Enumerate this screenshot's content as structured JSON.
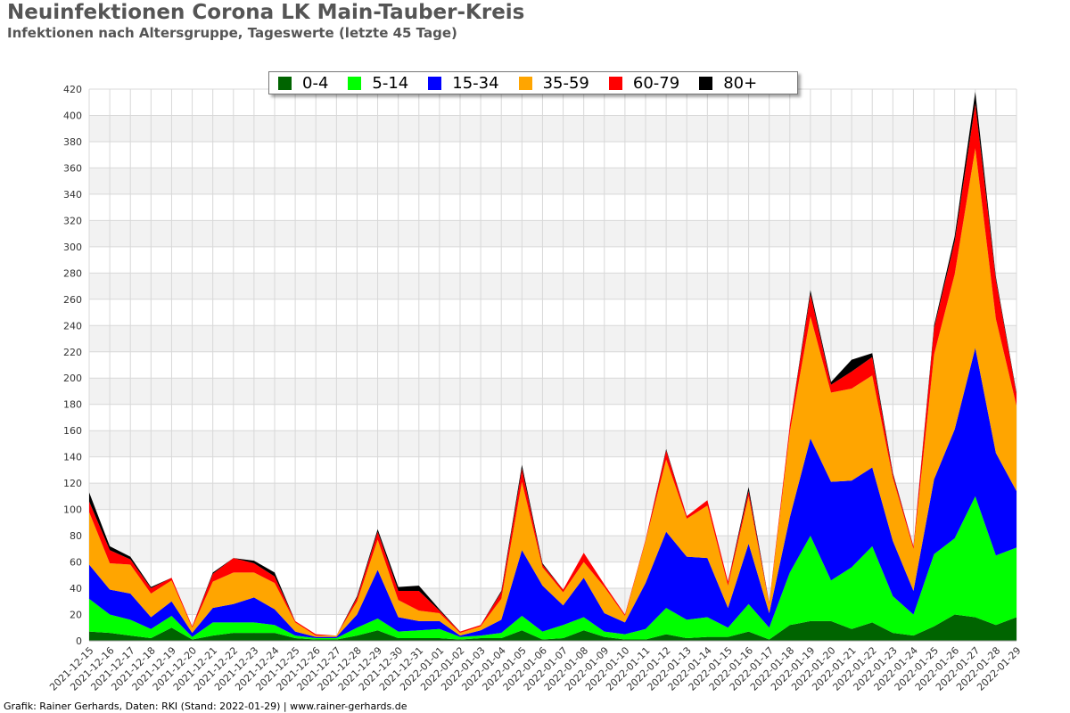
{
  "title": "Neuinfektionen Corona LK Main-Tauber-Kreis",
  "subtitle": "Infektionen nach Altersgruppe, Tageswerte (letzte 45 Tage)",
  "footer": "Grafik: Rainer Gerhards, Daten: RKI (Stand: 2022-01-29) | www.rainer-gerhards.de",
  "chart_data": {
    "type": "area",
    "stacked": true,
    "ylim": [
      0,
      420
    ],
    "yticks": [
      0,
      20,
      40,
      60,
      80,
      100,
      120,
      140,
      160,
      180,
      200,
      220,
      240,
      260,
      280,
      300,
      320,
      340,
      360,
      380,
      400,
      420
    ],
    "grid": true,
    "legend_position": "top-center",
    "x": [
      "2021-12-15",
      "2021-12-16",
      "2021-12-17",
      "2021-12-18",
      "2021-12-19",
      "2021-12-20",
      "2021-12-21",
      "2021-12-22",
      "2021-12-23",
      "2021-12-24",
      "2021-12-25",
      "2021-12-26",
      "2021-12-27",
      "2021-12-28",
      "2021-12-29",
      "2021-12-30",
      "2021-12-31",
      "2022-01-01",
      "2022-01-02",
      "2022-01-03",
      "2022-01-04",
      "2022-01-05",
      "2022-01-06",
      "2022-01-07",
      "2022-01-08",
      "2022-01-09",
      "2022-01-10",
      "2022-01-11",
      "2022-01-12",
      "2022-01-13",
      "2022-01-14",
      "2022-01-15",
      "2022-01-16",
      "2022-01-17",
      "2022-01-18",
      "2022-01-19",
      "2022-01-20",
      "2022-01-21",
      "2022-01-22",
      "2022-01-23",
      "2022-01-24",
      "2022-01-25",
      "2022-01-26",
      "2022-01-27",
      "2022-01-28",
      "2022-01-29"
    ],
    "series": [
      {
        "name": "0-4",
        "color": "#006400",
        "values": [
          7,
          6,
          4,
          2,
          10,
          1,
          4,
          6,
          6,
          6,
          2,
          1,
          1,
          4,
          8,
          2,
          2,
          2,
          1,
          2,
          2,
          8,
          1,
          2,
          8,
          3,
          1,
          1,
          5,
          2,
          3,
          3,
          7,
          1,
          12,
          15,
          15,
          9,
          14,
          6,
          4,
          11,
          20,
          18,
          12,
          18
        ]
      },
      {
        "name": "5-14",
        "color": "#00ff00",
        "values": [
          25,
          14,
          12,
          7,
          9,
          2,
          10,
          8,
          8,
          6,
          2,
          1,
          1,
          6,
          9,
          5,
          6,
          7,
          2,
          2,
          4,
          11,
          6,
          10,
          10,
          4,
          4,
          8,
          20,
          14,
          15,
          7,
          21,
          9,
          40,
          65,
          31,
          47,
          58,
          28,
          16,
          55,
          58,
          92,
          53,
          53
        ]
      },
      {
        "name": "15-34",
        "color": "#0000ff",
        "values": [
          26,
          19,
          20,
          9,
          11,
          3,
          11,
          14,
          19,
          12,
          3,
          1,
          1,
          10,
          37,
          11,
          7,
          6,
          1,
          4,
          10,
          50,
          35,
          15,
          30,
          14,
          9,
          35,
          58,
          48,
          45,
          15,
          46,
          11,
          42,
          74,
          75,
          66,
          60,
          42,
          18,
          57,
          83,
          113,
          78,
          43
        ]
      },
      {
        "name": "35-59",
        "color": "#ffa500",
        "values": [
          40,
          20,
          22,
          18,
          16,
          4,
          20,
          24,
          19,
          20,
          7,
          1,
          1,
          10,
          23,
          13,
          8,
          6,
          2,
          3,
          16,
          52,
          14,
          10,
          12,
          20,
          5,
          32,
          55,
          29,
          40,
          17,
          36,
          7,
          65,
          93,
          68,
          70,
          70,
          48,
          32,
          95,
          118,
          152,
          102,
          65
        ]
      },
      {
        "name": "60-79",
        "color": "#ff0000",
        "values": [
          8,
          10,
          4,
          4,
          2,
          1,
          6,
          11,
          7,
          5,
          1,
          1,
          0,
          3,
          6,
          7,
          15,
          2,
          1,
          1,
          5,
          10,
          2,
          2,
          7,
          2,
          1,
          1,
          7,
          2,
          4,
          3,
          4,
          1,
          5,
          17,
          6,
          13,
          14,
          3,
          2,
          20,
          25,
          34,
          30,
          9
        ]
      },
      {
        "name": "80+",
        "color": "#000000",
        "values": [
          7,
          3,
          2,
          1,
          0,
          0,
          1,
          0,
          2,
          3,
          0,
          0,
          0,
          1,
          2,
          3,
          4,
          1,
          0,
          0,
          1,
          3,
          1,
          0,
          0,
          0,
          0,
          0,
          1,
          0,
          0,
          0,
          3,
          0,
          0,
          3,
          2,
          9,
          3,
          1,
          0,
          2,
          4,
          9,
          2,
          1
        ]
      }
    ]
  }
}
